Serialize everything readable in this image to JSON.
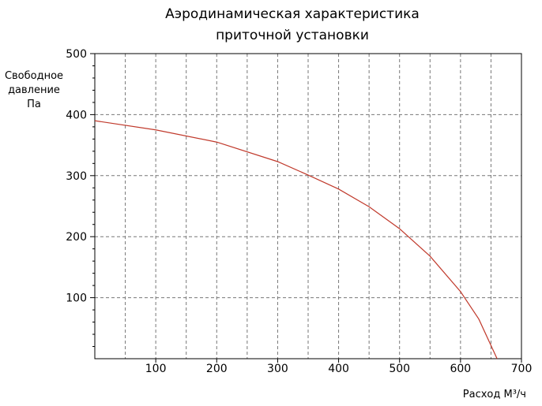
{
  "chart_data": {
    "type": "line",
    "title": [
      "Аэродинамическая характеристика",
      "приточной установки"
    ],
    "y_label": [
      "Свободное",
      "давление",
      "Па"
    ],
    "x_label": "Расход М³/ч",
    "x": [
      0,
      100,
      200,
      300,
      350,
      400,
      450,
      500,
      550,
      600,
      630,
      660
    ],
    "series": [
      {
        "color": "#c0392b",
        "values": [
          390,
          375,
          355,
          323,
          301,
          278,
          249,
          213,
          168,
          110,
          65,
          0
        ]
      }
    ],
    "xlim": [
      0,
      700
    ],
    "ylim": [
      0,
      500
    ],
    "xticks": [
      100,
      200,
      300,
      400,
      500,
      600,
      700
    ],
    "yticks": [
      100,
      200,
      300,
      400,
      500
    ],
    "grid": true
  }
}
